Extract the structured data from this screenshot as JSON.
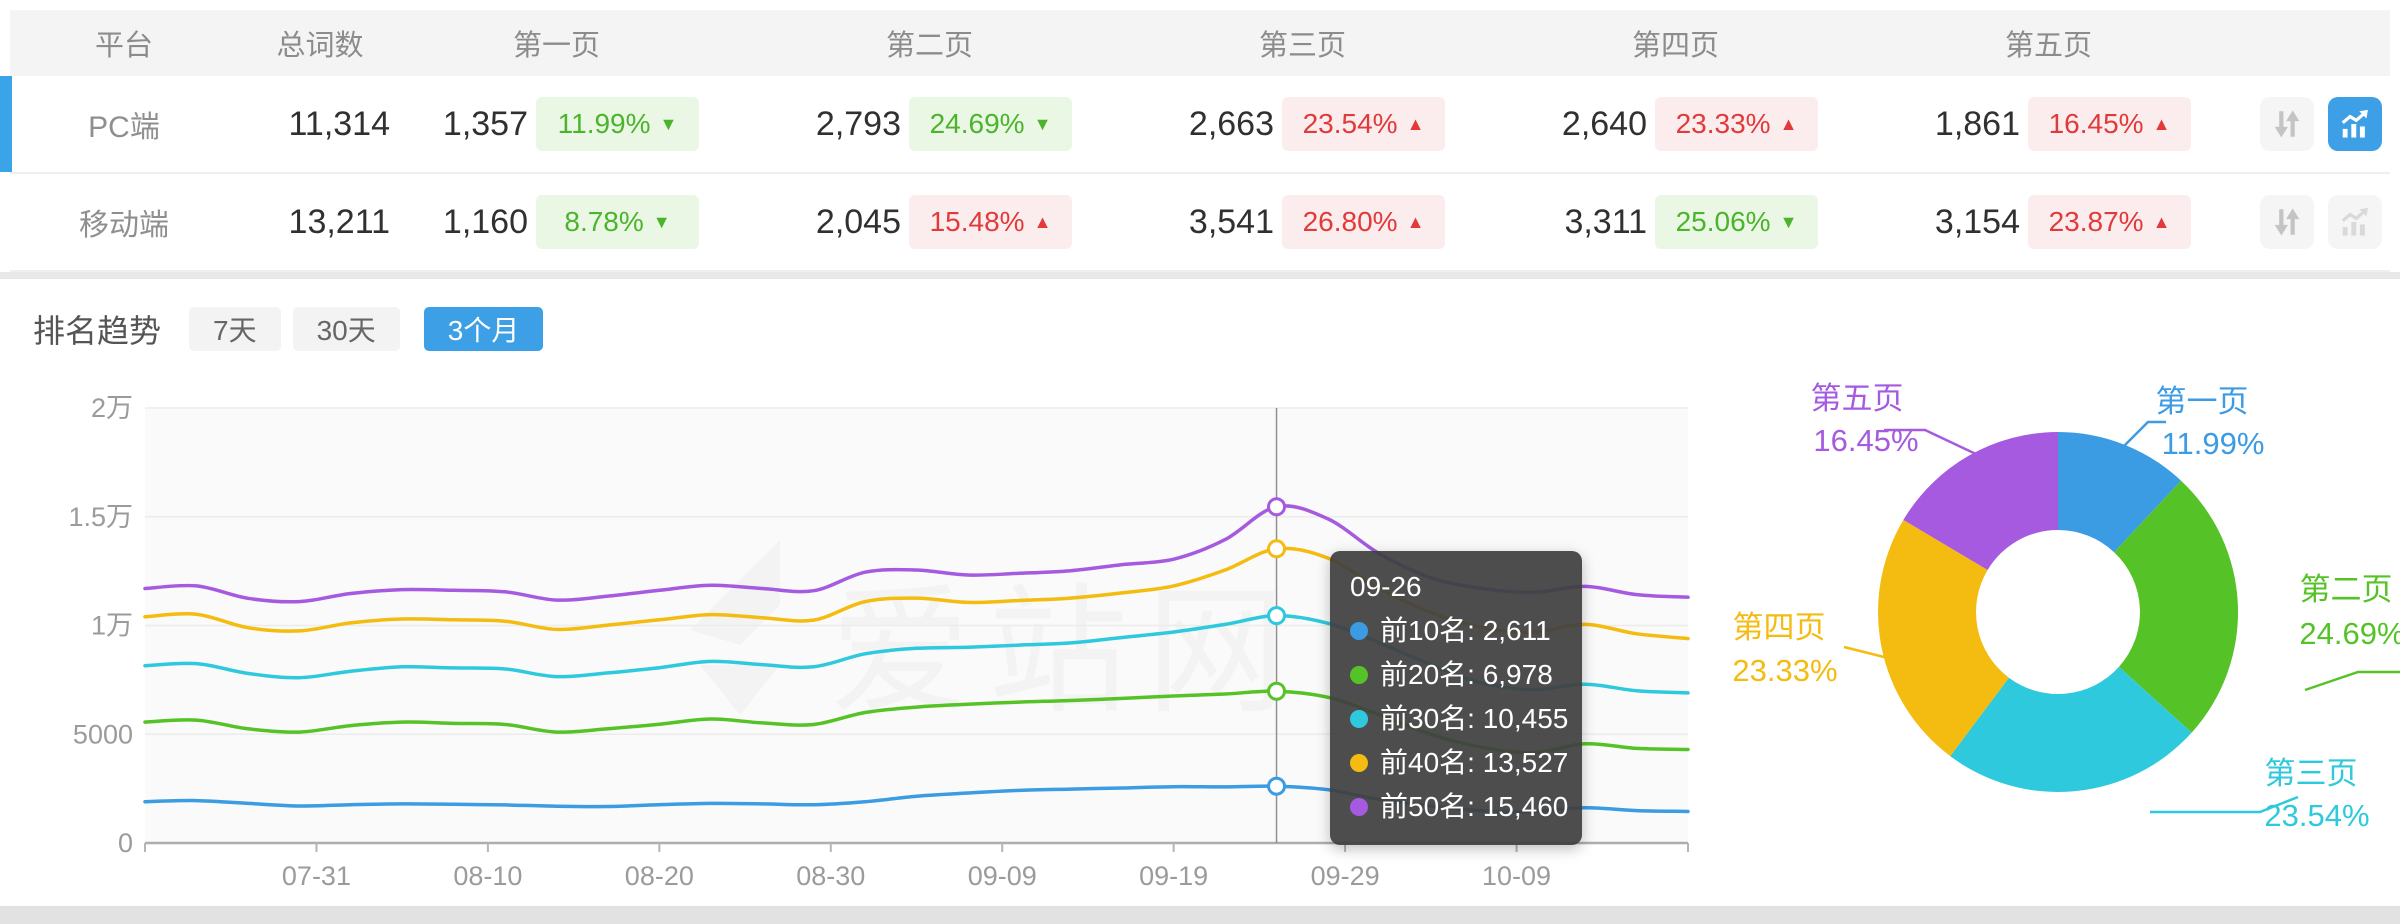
{
  "table": {
    "headers": {
      "platform": "平台",
      "total": "总词数",
      "pages": [
        "第一页",
        "第二页",
        "第三页",
        "第四页",
        "第五页"
      ]
    },
    "rows": [
      {
        "platform": "PC端",
        "total": "11,314",
        "selected": true,
        "chart_active": true,
        "pages": [
          {
            "count": "1,357",
            "pct": "11.99%",
            "trend": "down"
          },
          {
            "count": "2,793",
            "pct": "24.69%",
            "trend": "down"
          },
          {
            "count": "2,663",
            "pct": "23.54%",
            "trend": "up"
          },
          {
            "count": "2,640",
            "pct": "23.33%",
            "trend": "up"
          },
          {
            "count": "1,861",
            "pct": "16.45%",
            "trend": "up"
          }
        ]
      },
      {
        "platform": "移动端",
        "total": "13,211",
        "selected": false,
        "chart_active": false,
        "pages": [
          {
            "count": "1,160",
            "pct": "8.78%",
            "trend": "down"
          },
          {
            "count": "2,045",
            "pct": "15.48%",
            "trend": "up"
          },
          {
            "count": "3,541",
            "pct": "26.80%",
            "trend": "up"
          },
          {
            "count": "3,311",
            "pct": "25.06%",
            "trend": "down"
          },
          {
            "count": "3,154",
            "pct": "23.87%",
            "trend": "up"
          }
        ]
      }
    ],
    "colors": {
      "up": "#E23A3A",
      "up_bg": "#FBEDED",
      "down": "#4CB42C",
      "down_bg": "#EAF7E4",
      "accent": "#3BA3E8"
    }
  },
  "trend": {
    "title": "排名趋势",
    "tabs": [
      {
        "label": "7天",
        "active": false
      },
      {
        "label": "30天",
        "active": false
      },
      {
        "label": "3个月",
        "active": true
      }
    ],
    "active_color": "#3D9FE6"
  },
  "watermark": "爱站网",
  "tooltip": {
    "date": "09-26",
    "rows": [
      {
        "label": "前10名",
        "value": "2,611",
        "color": "#3B9BE3"
      },
      {
        "label": "前20名",
        "value": "6,978",
        "color": "#55C327"
      },
      {
        "label": "前30名",
        "value": "10,455",
        "color": "#2FC9DE"
      },
      {
        "label": "前40名",
        "value": "13,527",
        "color": "#F4BB10"
      },
      {
        "label": "前50名",
        "value": "15,460",
        "color": "#A55AE0"
      }
    ]
  },
  "chart_data": [
    {
      "type": "line",
      "title": "排名趋势 (3个月)",
      "ylim": [
        0,
        20000
      ],
      "y_ticks": [
        0,
        5000,
        10000,
        15000,
        20000
      ],
      "y_tick_labels": [
        "0",
        "5000",
        "1万",
        "1.5万",
        "2万"
      ],
      "x_tick_labels": [
        "07-31",
        "08-10",
        "08-20",
        "08-30",
        "09-09",
        "09-19",
        "09-29",
        "10-09"
      ],
      "x_tick_days": [
        10,
        20,
        30,
        40,
        50,
        60,
        70,
        80
      ],
      "x_range_days": [
        0,
        90
      ],
      "sample_step_days": 3,
      "grid": "horizontal",
      "cursor": {
        "index": 22,
        "date": "09-26"
      },
      "series": [
        {
          "name": "前10名",
          "color": "#3B9BE3",
          "values": [
            1900,
            1950,
            1820,
            1700,
            1760,
            1800,
            1780,
            1750,
            1690,
            1680,
            1760,
            1820,
            1800,
            1760,
            1900,
            2150,
            2300,
            2420,
            2480,
            2530,
            2590,
            2580,
            2611,
            2450,
            2000,
            1700,
            1480,
            1440,
            1620,
            1490,
            1450
          ]
        },
        {
          "name": "前20名",
          "color": "#55C327",
          "values": [
            5560,
            5650,
            5250,
            5100,
            5400,
            5560,
            5500,
            5450,
            5100,
            5250,
            5460,
            5700,
            5520,
            5450,
            6000,
            6250,
            6380,
            6480,
            6550,
            6650,
            6760,
            6850,
            6978,
            6700,
            5900,
            5000,
            4400,
            4150,
            4560,
            4350,
            4300
          ]
        },
        {
          "name": "前30名",
          "color": "#2FC9DE",
          "values": [
            8150,
            8250,
            7800,
            7600,
            7900,
            8100,
            8050,
            8000,
            7650,
            7820,
            8060,
            8350,
            8200,
            8100,
            8700,
            8950,
            9000,
            9100,
            9200,
            9450,
            9700,
            10050,
            10455,
            10100,
            9200,
            8200,
            7350,
            7050,
            7300,
            7000,
            6900
          ]
        },
        {
          "name": "前40名",
          "color": "#F4BB10",
          "values": [
            10400,
            10520,
            9900,
            9750,
            10120,
            10300,
            10260,
            10200,
            9820,
            10020,
            10260,
            10500,
            10360,
            10250,
            11100,
            11260,
            11060,
            11150,
            11260,
            11500,
            11820,
            12550,
            13527,
            13100,
            11700,
            10600,
            9900,
            9700,
            10050,
            9620,
            9400
          ]
        },
        {
          "name": "前50名",
          "color": "#A55AE0",
          "values": [
            11700,
            11820,
            11250,
            11100,
            11470,
            11650,
            11620,
            11550,
            11170,
            11350,
            11620,
            11850,
            11700,
            11600,
            12450,
            12550,
            12320,
            12400,
            12520,
            12800,
            13050,
            13950,
            15460,
            14900,
            13300,
            12200,
            11700,
            11520,
            11800,
            11420,
            11300
          ]
        }
      ]
    },
    {
      "type": "pie",
      "donut": true,
      "slices": [
        {
          "label": "第一页",
          "value": 11.99,
          "color": "#3B9BE3"
        },
        {
          "label": "第二页",
          "value": 24.69,
          "color": "#55C327"
        },
        {
          "label": "第三页",
          "value": 23.54,
          "color": "#2FC9DE"
        },
        {
          "label": "第四页",
          "value": 23.33,
          "color": "#F4BB10"
        },
        {
          "label": "第五页",
          "value": 16.45,
          "color": "#A55AE0"
        }
      ],
      "unit": "%"
    }
  ]
}
